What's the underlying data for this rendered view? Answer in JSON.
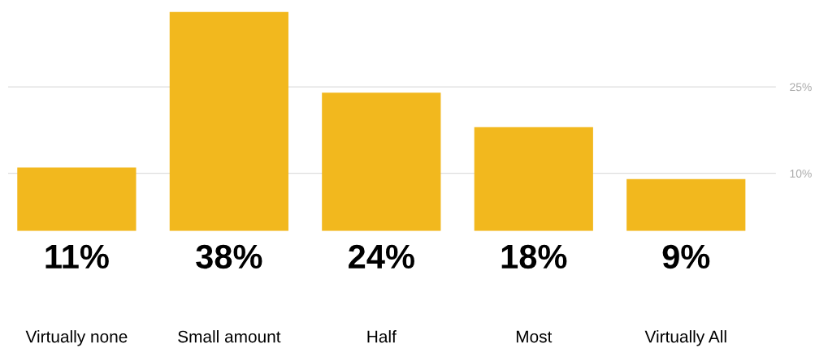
{
  "chart_data": {
    "type": "bar",
    "categories": [
      "Virtually none",
      "Small amount",
      "Half",
      "Most",
      "Virtually All"
    ],
    "values": [
      11,
      38,
      24,
      18,
      9
    ],
    "color": "#f2b81e",
    "data_labels": true,
    "value_labels": [
      "11%",
      "38%",
      "24%",
      "18%",
      "9%"
    ],
    "ylim": [
      0,
      38
    ],
    "yticks": [
      {
        "value": 10,
        "label": "10%"
      },
      {
        "value": 25,
        "label": "25%"
      }
    ],
    "grid": "y"
  }
}
